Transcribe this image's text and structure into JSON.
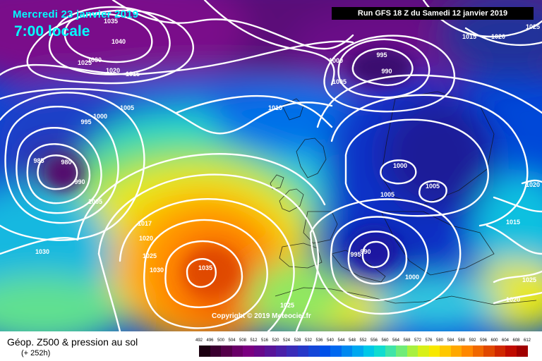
{
  "header": {
    "date_text": "Mercredi 23 janvier 2019",
    "time_text": "7:00 locale",
    "run_info": "Run GFS 18 Z du Samedi 12 janvier 2019"
  },
  "copyright": "Copyright © 2019 Meteociel.fr",
  "legend": {
    "title": "Géop. Z500 & pression au sol",
    "subtitle": "(+ 252h)",
    "scale_values": [
      "492",
      "496",
      "500",
      "504",
      "508",
      "512",
      "516",
      "520",
      "524",
      "528",
      "532",
      "536",
      "540",
      "544",
      "548",
      "552",
      "556",
      "560",
      "564",
      "568",
      "572",
      "576",
      "580",
      "584",
      "588",
      "592",
      "596",
      "600",
      "604",
      "608",
      "612"
    ],
    "scale_colors": [
      "#1a0010",
      "#3a0030",
      "#55004a",
      "#6a0068",
      "#7a0080",
      "#68088a",
      "#581498",
      "#4a20a8",
      "#3a2cb8",
      "#2638c8",
      "#1446d8",
      "#0050e8",
      "#0068f0",
      "#0088f0",
      "#00a8f0",
      "#00c8e8",
      "#10dcd0",
      "#40e4a8",
      "#70ec78",
      "#a8f040",
      "#d8f018",
      "#f8e800",
      "#ffc800",
      "#ffa800",
      "#ff8800",
      "#f06800",
      "#e04800",
      "#d02800",
      "#c00c00",
      "#a00000",
      "#700000"
    ]
  },
  "isobars": [
    {
      "label": "1035"
    },
    {
      "label": "1040"
    },
    {
      "label": "1025"
    },
    {
      "label": "1030"
    },
    {
      "label": "1020"
    },
    {
      "label": "1015"
    },
    {
      "label": "995"
    },
    {
      "label": "990"
    },
    {
      "label": "1000"
    },
    {
      "label": "1005"
    },
    {
      "label": "1015"
    },
    {
      "label": "1020"
    },
    {
      "label": "1025"
    },
    {
      "label": "1005"
    },
    {
      "label": "1000"
    },
    {
      "label": "995"
    },
    {
      "label": "985"
    },
    {
      "label": "980"
    },
    {
      "label": "990"
    },
    {
      "label": "1005"
    },
    {
      "label": "1030"
    },
    {
      "label": "1010"
    },
    {
      "label": "1017"
    },
    {
      "label": "1020"
    },
    {
      "label": "1025"
    },
    {
      "label": "1030"
    },
    {
      "label": "1035"
    },
    {
      "label": "1000"
    },
    {
      "label": "1005"
    },
    {
      "label": "1005"
    },
    {
      "label": "995"
    },
    {
      "label": "990"
    },
    {
      "label": "1000"
    },
    {
      "label": "1020"
    },
    {
      "label": "1015"
    },
    {
      "label": "1025"
    },
    {
      "label": "1020"
    },
    {
      "label": "1025"
    }
  ]
}
